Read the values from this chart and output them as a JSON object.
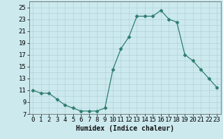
{
  "x": [
    0,
    1,
    2,
    3,
    4,
    5,
    6,
    7,
    8,
    9,
    10,
    11,
    12,
    13,
    14,
    15,
    16,
    17,
    18,
    19,
    20,
    21,
    22,
    23
  ],
  "y": [
    11,
    10.5,
    10.5,
    9.5,
    8.5,
    8,
    7.5,
    7.5,
    7.5,
    8,
    14.5,
    18,
    20,
    23.5,
    23.5,
    23.5,
    24.5,
    23,
    22.5,
    17,
    16,
    14.5,
    13,
    11.5
  ],
  "line_color": "#2e7d6e",
  "marker": "D",
  "marker_size": 2.5,
  "bg_color": "#cce9ee",
  "grid_color": "#aacdd4",
  "xlabel": "Humidex (Indice chaleur)",
  "xlim": [
    -0.5,
    23.5
  ],
  "ylim": [
    7,
    26
  ],
  "yticks": [
    7,
    9,
    11,
    13,
    15,
    17,
    19,
    21,
    23,
    25
  ],
  "xticks": [
    0,
    1,
    2,
    3,
    4,
    5,
    6,
    7,
    8,
    9,
    10,
    11,
    12,
    13,
    14,
    15,
    16,
    17,
    18,
    19,
    20,
    21,
    22,
    23
  ],
  "label_fontsize": 7,
  "tick_fontsize": 6.5
}
